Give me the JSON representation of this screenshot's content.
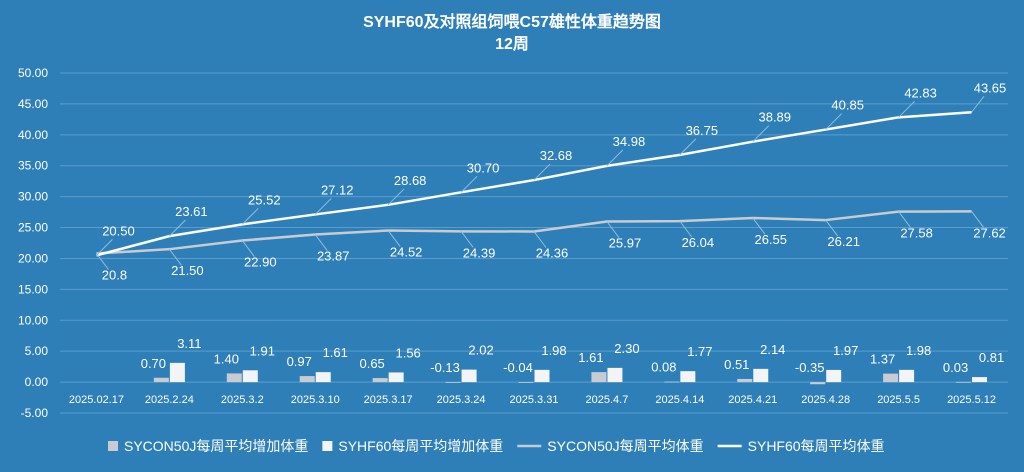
{
  "chart_data": {
    "type": "bar+line",
    "title": "SYHF60及对照组饲喂C57雄性体重趋势图",
    "subtitle": "12周",
    "xlabel": "",
    "ylabel": "",
    "ylim": [
      -5,
      50
    ],
    "yticks": [
      "-5.00",
      "0.00",
      "5.00",
      "10.00",
      "15.00",
      "20.00",
      "25.00",
      "30.00",
      "35.00",
      "40.00",
      "45.00",
      "50.00"
    ],
    "grid": true,
    "legend_position": "bottom",
    "categories": [
      "2025.02.17",
      "2025.2.24",
      "2025.3.2",
      "2025.3.10",
      "2025.3.17",
      "2025.3.24",
      "2025.3.31",
      "2025.4.7",
      "2025.4.14",
      "2025.4.21",
      "2025.4.28",
      "2025.5.5",
      "2025.5.12"
    ],
    "series": [
      {
        "name": "SYCON50J每周平均增加体重",
        "kind": "bar",
        "color": "#c8ccd2",
        "values": [
          null,
          0.7,
          1.4,
          0.97,
          0.65,
          -0.13,
          -0.04,
          1.61,
          0.08,
          0.51,
          -0.35,
          1.37,
          0.03
        ],
        "labels": [
          "",
          "0.70",
          "1.40",
          "0.97",
          "0.65",
          "-0.13",
          "-0.04",
          "1.61",
          "0.08",
          "0.51",
          "-0.35",
          "1.37",
          "0.03"
        ]
      },
      {
        "name": "SYHF60每周平均增加体重",
        "kind": "bar",
        "color": "#f2f4f7",
        "values": [
          null,
          3.11,
          1.91,
          1.61,
          1.56,
          2.02,
          1.98,
          2.3,
          1.77,
          2.14,
          1.97,
          1.98,
          0.81
        ],
        "labels": [
          "",
          "3.11",
          "1.91",
          "1.61",
          "1.56",
          "2.02",
          "1.98",
          "2.30",
          "1.77",
          "2.14",
          "1.97",
          "1.98",
          "0.81"
        ]
      },
      {
        "name": "SYCON50J每周平均体重",
        "kind": "line",
        "color": "#c8ccd2",
        "values": [
          20.8,
          21.5,
          22.9,
          23.87,
          24.52,
          24.39,
          24.36,
          25.97,
          26.04,
          26.55,
          26.21,
          27.58,
          27.62
        ],
        "labels": [
          "20.8",
          "21.50",
          "22.90",
          "23.87",
          "24.52",
          "24.39",
          "24.36",
          "25.97",
          "26.04",
          "26.55",
          "26.21",
          "27.58",
          "27.62"
        ]
      },
      {
        "name": "SYHF60每周平均体重",
        "kind": "line",
        "color": "#ffffff",
        "values": [
          20.5,
          23.61,
          25.52,
          27.12,
          28.68,
          30.7,
          32.68,
          34.98,
          36.75,
          38.89,
          40.85,
          42.83,
          43.65
        ],
        "labels": [
          "20.50",
          "23.61",
          "25.52",
          "27.12",
          "28.68",
          "30.70",
          "32.68",
          "34.98",
          "36.75",
          "38.89",
          "40.85",
          "42.83",
          "43.65"
        ]
      }
    ]
  }
}
